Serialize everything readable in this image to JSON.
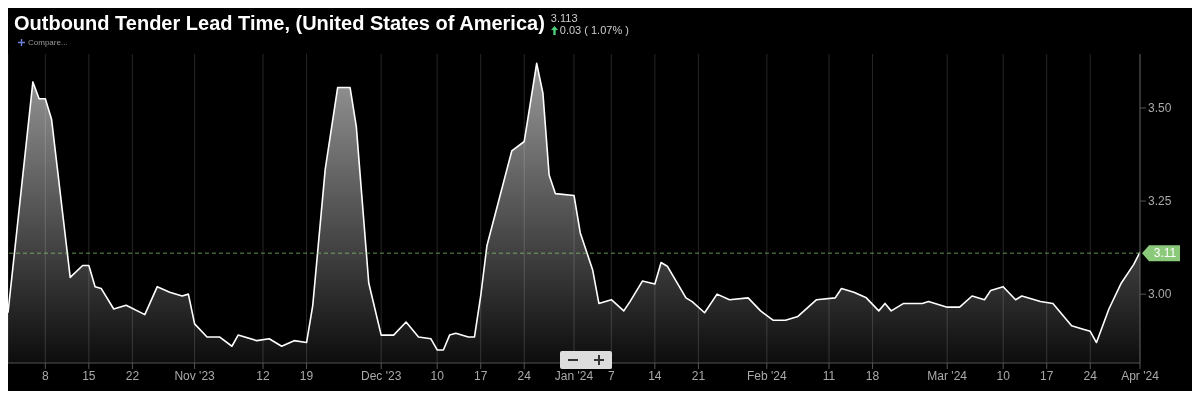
{
  "chart_data": {
    "type": "area",
    "title": "Outbound Tender Lead Time, (United States of America)",
    "annotations": [
      "3.113",
      "0.03 ( 1.07% )",
      "Compare..."
    ],
    "x": [
      "2023-10-02",
      "2023-10-06",
      "2023-10-07",
      "2023-10-08",
      "2023-10-09",
      "2023-10-12",
      "2023-10-14",
      "2023-10-15",
      "2023-10-16",
      "2023-10-17",
      "2023-10-19",
      "2023-10-21",
      "2023-10-24",
      "2023-10-26",
      "2023-10-28",
      "2023-10-30",
      "2023-10-31",
      "2023-11-01",
      "2023-11-03",
      "2023-11-05",
      "2023-11-07",
      "2023-11-08",
      "2023-11-11",
      "2023-11-13",
      "2023-11-15",
      "2023-11-17",
      "2023-11-19",
      "2023-11-20",
      "2023-11-22",
      "2023-11-24",
      "2023-11-26",
      "2023-11-27",
      "2023-11-29",
      "2023-12-01",
      "2023-12-03",
      "2023-12-05",
      "2023-12-07",
      "2023-12-09",
      "2023-12-10",
      "2023-12-11",
      "2023-12-12",
      "2023-12-13",
      "2023-12-15",
      "2023-12-16",
      "2023-12-17",
      "2023-12-18",
      "2023-12-22",
      "2023-12-24",
      "2023-12-26",
      "2023-12-27",
      "2023-12-28",
      "2023-12-29",
      "2024-01-01",
      "2024-01-02",
      "2024-01-04",
      "2024-01-05",
      "2024-01-07",
      "2024-01-09",
      "2024-01-10",
      "2024-01-12",
      "2024-01-14",
      "2024-01-15",
      "2024-01-16",
      "2024-01-19",
      "2024-01-20",
      "2024-01-22",
      "2024-01-24",
      "2024-01-26",
      "2024-01-29",
      "2024-01-31",
      "2024-02-02",
      "2024-02-04",
      "2024-02-06",
      "2024-02-09",
      "2024-02-12",
      "2024-02-13",
      "2024-02-15",
      "2024-02-17",
      "2024-02-19",
      "2024-02-20",
      "2024-02-21",
      "2024-02-23",
      "2024-02-26",
      "2024-02-27",
      "2024-03-01",
      "2024-03-03",
      "2024-03-05",
      "2024-03-07",
      "2024-03-08",
      "2024-03-10",
      "2024-03-12",
      "2024-03-13",
      "2024-03-16",
      "2024-03-18",
      "2024-03-21",
      "2024-03-23",
      "2024-03-24",
      "2024-03-25",
      "2024-03-27",
      "2024-03-29",
      "2024-03-31",
      "2024-04-01"
    ],
    "series": [
      {
        "color": "#ffffff",
        "values": [
          2.95,
          3.57,
          3.525,
          3.525,
          3.47,
          3.045,
          3.077,
          3.077,
          3.02,
          3.015,
          2.96,
          2.97,
          2.945,
          3.02,
          3.005,
          2.995,
          3.0,
          2.92,
          2.885,
          2.885,
          2.86,
          2.89,
          2.875,
          2.88,
          2.86,
          2.875,
          2.87,
          2.97,
          3.335,
          3.555,
          3.555,
          3.45,
          3.03,
          2.89,
          2.89,
          2.925,
          2.885,
          2.88,
          2.85,
          2.85,
          2.89,
          2.895,
          2.885,
          2.885,
          2.995,
          3.13,
          3.385,
          3.41,
          3.62,
          3.54,
          3.32,
          3.27,
          3.265,
          3.165,
          3.065,
          2.975,
          2.985,
          2.955,
          2.98,
          3.035,
          3.027,
          3.085,
          3.075,
          2.99,
          2.98,
          2.95,
          3.0,
          2.985,
          2.99,
          2.955,
          2.93,
          2.93,
          2.94,
          2.985,
          2.99,
          3.015,
          3.005,
          2.99,
          2.955,
          2.975,
          2.955,
          2.975,
          2.975,
          2.98,
          2.965,
          2.965,
          2.995,
          2.985,
          3.01,
          3.02,
          2.985,
          2.995,
          2.98,
          2.975,
          2.915,
          2.905,
          2.9,
          2.87,
          2.96,
          3.03,
          3.08,
          3.113
        ]
      }
    ],
    "xlim": [
      "2023-10-02",
      "2024-04-01"
    ],
    "xticks": [
      {
        "value": "2023-10-08",
        "label": "8"
      },
      {
        "value": "2023-10-15",
        "label": "15"
      },
      {
        "value": "2023-10-22",
        "label": "22"
      },
      {
        "value": "2023-11-01",
        "label": "Nov '23"
      },
      {
        "value": "2023-11-12",
        "label": "12"
      },
      {
        "value": "2023-11-19",
        "label": "19"
      },
      {
        "value": "2023-12-01",
        "label": "Dec '23"
      },
      {
        "value": "2023-12-10",
        "label": "10"
      },
      {
        "value": "2023-12-17",
        "label": "17"
      },
      {
        "value": "2023-12-24",
        "label": "24"
      },
      {
        "value": "2024-01-01",
        "label": "Jan '24"
      },
      {
        "value": "2024-01-07",
        "label": "7"
      },
      {
        "value": "2024-01-14",
        "label": "14"
      },
      {
        "value": "2024-01-21",
        "label": "21"
      },
      {
        "value": "2024-02-01",
        "label": "Feb '24"
      },
      {
        "value": "2024-02-11",
        "label": "11"
      },
      {
        "value": "2024-02-18",
        "label": "18"
      },
      {
        "value": "2024-03-01",
        "label": "Mar '24"
      },
      {
        "value": "2024-03-10",
        "label": "10"
      },
      {
        "value": "2024-03-17",
        "label": "17"
      },
      {
        "value": "2024-03-24",
        "label": "24"
      },
      {
        "value": "2024-04-01",
        "label": "Apr '24"
      }
    ],
    "ylim": [
      2.815,
      3.645
    ],
    "yticks": [
      {
        "value": 3,
        "label": "3.00"
      },
      {
        "value": 3.25,
        "label": "3.25"
      },
      {
        "value": 3.5,
        "label": "3.50"
      }
    ],
    "ref_lines": [
      {
        "axis": "y",
        "value": 3.11,
        "label": "3.11",
        "color": "#8bc97a",
        "line_style": "dashed"
      }
    ],
    "grid": "x"
  }
}
